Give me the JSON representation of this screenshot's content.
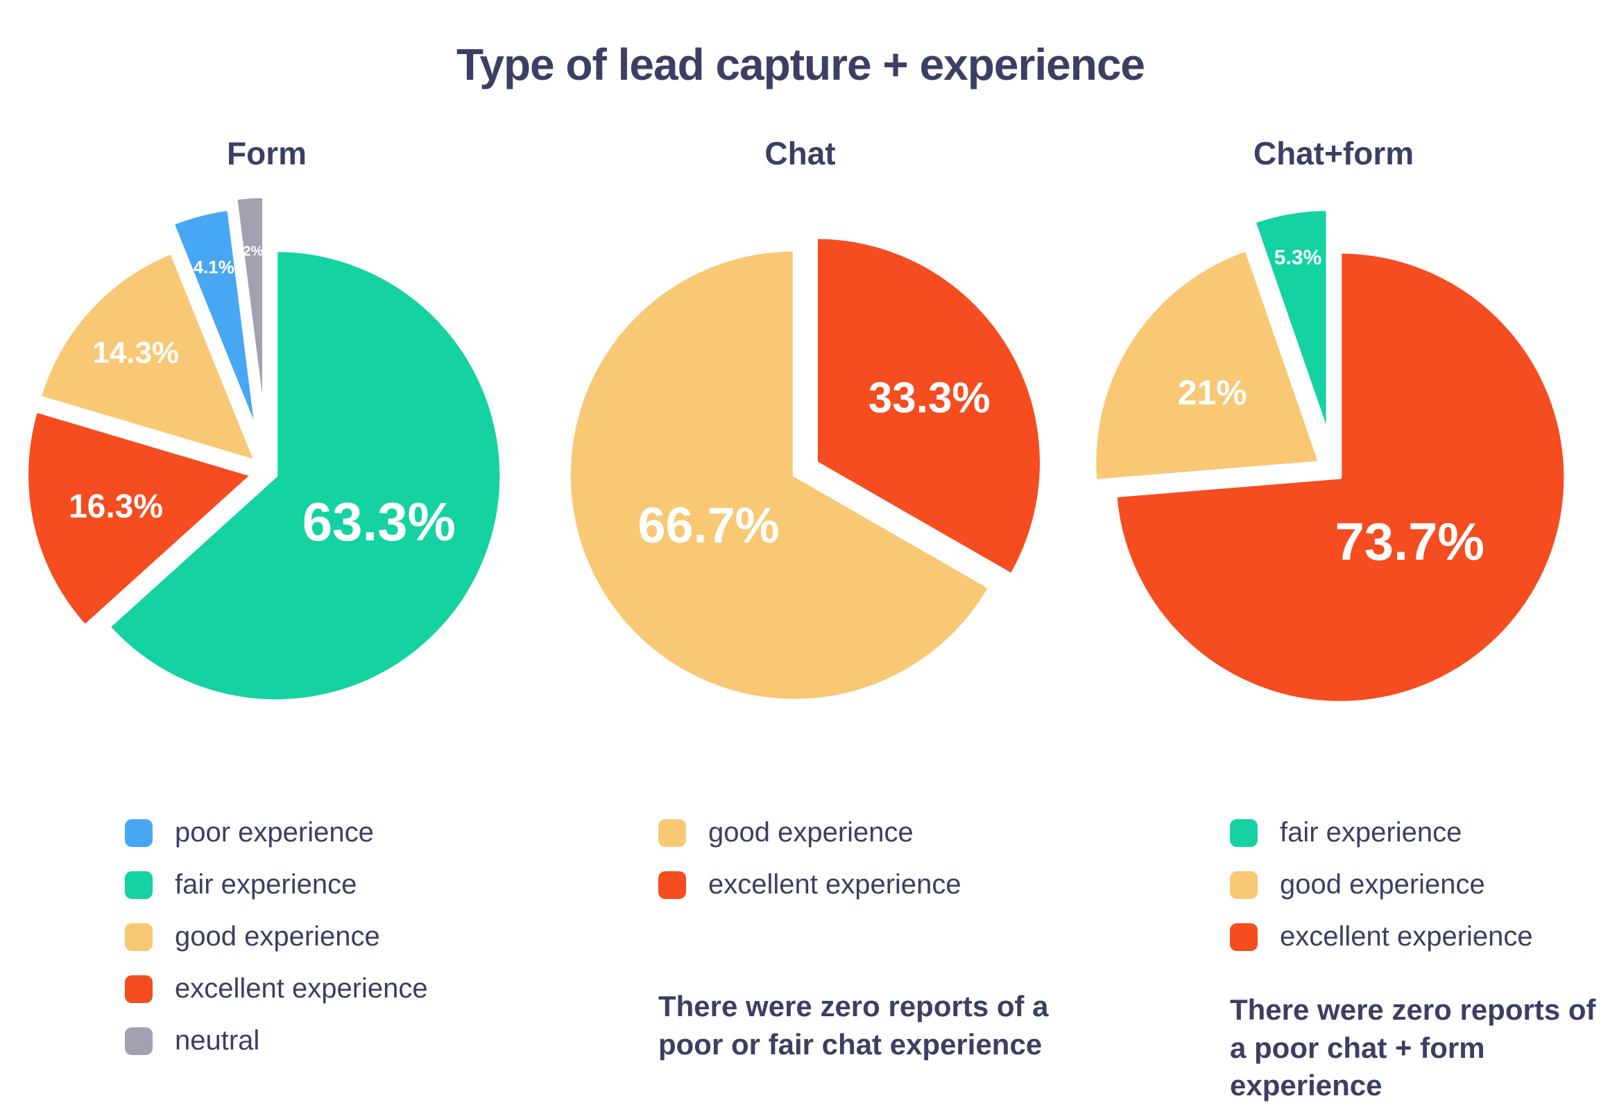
{
  "title": "Type of lead capture + experience",
  "colors": {
    "poor": "#47a7f3",
    "fair": "#14d2a2",
    "good": "#f9c874",
    "excellent": "#f54c20",
    "neutral": "#a2a1b2",
    "text": "#3b3f63"
  },
  "chart_data": [
    {
      "type": "pie",
      "title": "Form",
      "slices": [
        {
          "label": "fair experience",
          "value": 63.3,
          "pct_label": "63.3%",
          "color": "fair",
          "explode": 14,
          "label_r": 0.5,
          "label_size": 78
        },
        {
          "label": "excellent experience",
          "value": 16.3,
          "pct_label": "16.3%",
          "color": "excellent",
          "explode": 22,
          "label_r": 0.62,
          "label_size": 48
        },
        {
          "label": "good experience",
          "value": 14.3,
          "pct_label": "14.3%",
          "color": "good",
          "explode": 22,
          "label_r": 0.72,
          "label_size": 44
        },
        {
          "label": "poor experience",
          "value": 4.1,
          "pct_label": "4.1%",
          "color": "poor",
          "explode": 58,
          "label_r": 0.76,
          "label_size": 26
        },
        {
          "label": "neutral",
          "value": 2.0,
          "pct_label": "2%",
          "color": "neutral",
          "explode": 72,
          "label_r": 0.76,
          "label_size": 20
        }
      ],
      "legend": [
        {
          "label": "poor experience",
          "color": "poor"
        },
        {
          "label": "fair experience",
          "color": "fair"
        },
        {
          "label": "good experience",
          "color": "good"
        },
        {
          "label": "excellent experience",
          "color": "excellent"
        },
        {
          "label": "neutral",
          "color": "neutral"
        }
      ]
    },
    {
      "type": "pie",
      "title": "Chat",
      "slices": [
        {
          "label": "excellent experience",
          "value": 33.3,
          "pct_label": "33.3%",
          "color": "excellent",
          "explode": 26,
          "label_r": 0.58,
          "label_size": 62
        },
        {
          "label": "good experience",
          "value": 66.7,
          "pct_label": "66.7%",
          "color": "good",
          "explode": 10,
          "label_r": 0.44,
          "label_size": 72
        }
      ],
      "legend": [
        {
          "label": "good experience",
          "color": "good"
        },
        {
          "label": "excellent experience",
          "color": "excellent"
        }
      ],
      "note": "There were zero reports of a poor or fair chat experience"
    },
    {
      "type": "pie",
      "title": "Chat+form",
      "slices": [
        {
          "label": "excellent experience",
          "value": 73.7,
          "pct_label": "73.7%",
          "color": "excellent",
          "explode": 12,
          "label_r": 0.42,
          "label_size": 76
        },
        {
          "label": "good experience",
          "value": 21.0,
          "pct_label": "21%",
          "color": "good",
          "explode": 24,
          "label_r": 0.57,
          "label_size": 50
        },
        {
          "label": "fair experience",
          "value": 5.3,
          "pct_label": "5.3%",
          "color": "fair",
          "explode": 54,
          "label_r": 0.8,
          "label_size": 30
        }
      ],
      "legend": [
        {
          "label": "fair experience",
          "color": "fair"
        },
        {
          "label": "good experience",
          "color": "good"
        },
        {
          "label": "excellent experience",
          "color": "excellent"
        }
      ],
      "note": "There were zero reports of a poor chat + form experience"
    }
  ]
}
